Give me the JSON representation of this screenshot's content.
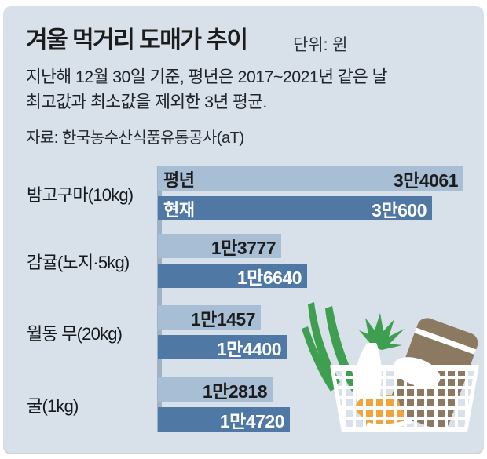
{
  "header": {
    "title": "겨울 먹거리 도매가 추이",
    "unit_label": "단위: 원",
    "subtitle_lines": {
      "0": "지난해 12월 30일 기준, 평년은 2017~2021년 같은 날",
      "1": "최고값과 최소값을 제외한 3년 평균."
    },
    "source": "자료: 한국농수산식품유통공사(aT)"
  },
  "colors": {
    "panel_bg": "#d8e1e9",
    "bar_light": "#a7bed4",
    "bar_dark": "#4f78a4",
    "axis_line": "#9eb2c6",
    "ink": "#1c1c1c",
    "green": "#3f9f50",
    "brown": "#8c7962",
    "orange": "#f0a53c",
    "white": "#ffffff"
  },
  "chart_data": {
    "type": "bar",
    "orientation": "horizontal",
    "unit": "원",
    "title": "겨울 먹거리 도매가 추이",
    "categories": [
      "밤고구마(10kg)",
      "감귤(노지·5kg)",
      "월동 무(20kg)",
      "굴(1kg)"
    ],
    "series": [
      {
        "key": "normal_year",
        "name": "평년",
        "values": [
          34061,
          13777,
          11457,
          12818
        ],
        "labels": [
          "3만4061",
          "1만3777",
          "1만1457",
          "1만2818"
        ]
      },
      {
        "key": "current",
        "name": "현재",
        "values": [
          30600,
          16640,
          14400,
          14720
        ],
        "labels": [
          "3만600",
          "1만6640",
          "1만4400",
          "1만4720"
        ]
      }
    ],
    "xlim": [
      0,
      34061
    ],
    "value_label_position": "inside-right",
    "series_names_shown_on_first_pair_only": true,
    "grid": false,
    "legend": "inline-first-bars"
  },
  "illustration": {
    "description": "grocery basket with green onion, white radish, brown jar and tangerines",
    "icons": [
      "scallion-icon",
      "radish-leaves-icon",
      "radish-icon",
      "jar-icon",
      "tangerines-icon",
      "basket-icon"
    ]
  }
}
